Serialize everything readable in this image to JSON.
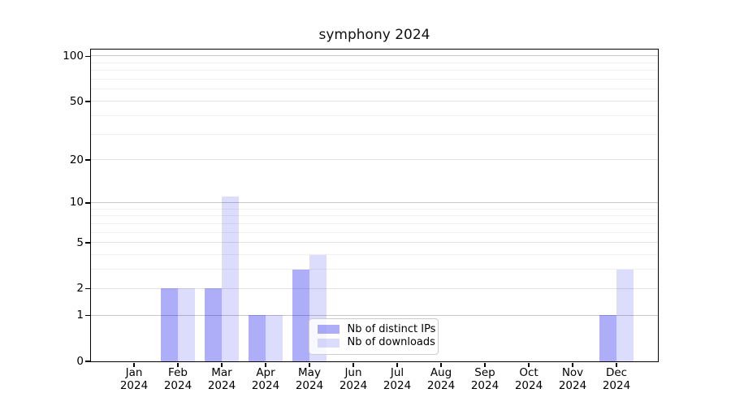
{
  "chart_data": {
    "type": "bar",
    "title": "symphony 2024",
    "categories": [
      "Jan\n2024",
      "Feb\n2024",
      "Mar\n2024",
      "Apr\n2024",
      "May\n2024",
      "Jun\n2024",
      "Jul\n2024",
      "Aug\n2024",
      "Sep\n2024",
      "Oct\n2024",
      "Nov\n2024",
      "Dec\n2024"
    ],
    "series": [
      {
        "name": "Nb of distinct IPs",
        "color": "rgba(20,20,235,0.35)",
        "values": [
          0,
          2,
          2,
          1,
          3,
          0,
          0,
          0,
          0,
          0,
          0,
          1
        ]
      },
      {
        "name": "Nb of downloads",
        "color": "rgba(20,20,235,0.15)",
        "values": [
          0,
          2,
          11,
          1,
          4,
          0,
          0,
          0,
          0,
          0,
          0,
          3
        ]
      }
    ],
    "xlabel": "",
    "ylabel": "",
    "yscale": "log1p",
    "ylim": [
      0,
      111
    ],
    "ytick_values": [
      0,
      1,
      2,
      5,
      10,
      20,
      50,
      100
    ],
    "minor_ytick_values": [
      3,
      4,
      6,
      7,
      8,
      9,
      30,
      40,
      60,
      70,
      80,
      90
    ],
    "grid": "horizontal major and minor",
    "legend_position": "inside lower-center",
    "colors": {
      "axis": "#000000",
      "grid_decade": "#c7c7c7",
      "grid_major": "#e3e3e3",
      "grid_minor": "#f0f0f0",
      "legend_border": "#cccccc",
      "legend_background": "rgba(255,255,255,0.8)",
      "text": "#000000",
      "background": "#ffffff"
    }
  }
}
